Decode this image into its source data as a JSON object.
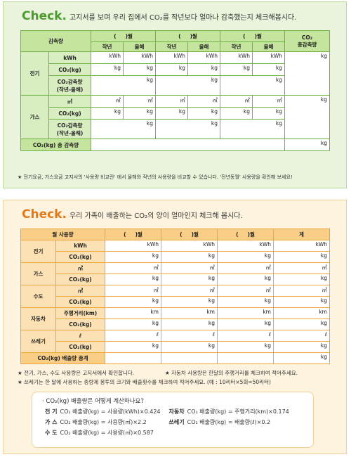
{
  "top": {
    "check": "Check.",
    "title": "고지서를 보며 우리 집에서 CO₂를 작년보다 얼마나 감축했는지 체크해봅시다.",
    "header": {
      "label": "감축량",
      "months": [
        "(     )월",
        "(     )월",
        "(     )월"
      ],
      "total": "CO₂\n총감축량",
      "sub": [
        "작년",
        "올해",
        "작년",
        "올해",
        "작년",
        "올해"
      ]
    },
    "groups": [
      {
        "name": "전기",
        "total": "kg",
        "rows": [
          {
            "label": "kWh",
            "cells": [
              "kWh",
              "kWh",
              "kWh",
              "kWh",
              "kWh",
              "kWh"
            ]
          },
          {
            "label": "CO₂(kg)",
            "cells": [
              "kg",
              "kg",
              "kg",
              "kg",
              "kg",
              "kg"
            ]
          },
          {
            "label": "CO₂감축량\n(작년-올해)",
            "cells": [
              "kg",
              "kg",
              "kg"
            ]
          }
        ]
      },
      {
        "name": "가스",
        "total": "kg",
        "rows": [
          {
            "label": "㎥",
            "cells": [
              "㎥",
              "㎥",
              "㎥",
              "㎥",
              "㎥",
              "㎥"
            ]
          },
          {
            "label": "CO₂(kg)",
            "cells": [
              "kg",
              "kg",
              "kg",
              "kg",
              "kg",
              "kg"
            ]
          },
          {
            "label": "CO₂감축량\n(작년-올해)",
            "cells": [
              "kg",
              "kg",
              "kg"
            ]
          }
        ]
      }
    ],
    "total_row": {
      "label": "CO₂(kg) 총 감축량",
      "total": "kg"
    },
    "note": "★ 전기요금, 가스요금 고지서의 '사용량 비교란' 에서 올해와 작년의 사용량을 비교할 수 있습니다. '전년동월' 사용량을 확인해 보세요!"
  },
  "bottom": {
    "check": "Check.",
    "title": "우리 가족이 배출하는 CO₂의 양이 얼마인지 체크해 봅시다.",
    "header": {
      "label": "월 사용량",
      "months": [
        "(     )월",
        "(     )월",
        "(     )월"
      ],
      "sum": "계"
    },
    "groups": [
      {
        "name": "전기",
        "rows": [
          {
            "label": "kWh",
            "cells": [
              "kWh",
              "kWh",
              "kWh",
              "kWh"
            ]
          },
          {
            "label": "CO₂(kg)",
            "cells": [
              "kg",
              "kg",
              "kg",
              "kg"
            ]
          }
        ]
      },
      {
        "name": "가스",
        "rows": [
          {
            "label": "㎥",
            "cells": [
              "㎥",
              "㎥",
              "㎥",
              "㎥"
            ]
          },
          {
            "label": "CO₂(kg)",
            "cells": [
              "kg",
              "kg",
              "kg",
              "kg"
            ]
          }
        ]
      },
      {
        "name": "수도",
        "rows": [
          {
            "label": "㎥",
            "cells": [
              "㎥",
              "㎥",
              "㎥",
              "㎥"
            ]
          },
          {
            "label": "CO₂(kg)",
            "cells": [
              "kg",
              "kg",
              "kg",
              "kg"
            ]
          }
        ]
      },
      {
        "name": "자동차",
        "rows": [
          {
            "label": "주행거리(km)",
            "cells": [
              "km",
              "km",
              "km",
              "km"
            ]
          },
          {
            "label": "CO₂(kg)",
            "cells": [
              "kg",
              "kg",
              "kg",
              "kg"
            ]
          }
        ]
      },
      {
        "name": "쓰레기",
        "rows": [
          {
            "label": "ℓ",
            "cells": [
              "ℓ",
              "ℓ",
              "ℓ",
              "ℓ"
            ]
          },
          {
            "label": "CO₂(kg)",
            "cells": [
              "kg",
              "kg",
              "kg",
              "kg"
            ]
          }
        ]
      }
    ],
    "total_row": {
      "label": "CO₂(kg) 배출량 총계",
      "cells": [
        null,
        null,
        null,
        "kg"
      ]
    },
    "notes": [
      "★ 전기, 가스, 수도 사용량은 고지서에서 확인합니다.",
      "★ 자동차 사용량은 한달의 주행거리를 체크하여 적어주세요.",
      "★ 쓰레기는 한 달에 사용하는 종량제 봉투의 크기와 배출횟수를 체크하여 적어주세요. (예 : 10리터×5회=50리터)"
    ],
    "box": {
      "title": "· CO₂(kg) 배출량은 어떻게 계산하나요?",
      "formulas": [
        {
          "name": "전 기",
          "text": "CO₂ 배출량(kg) = 사용량(kWh)×0.424"
        },
        {
          "name": "가 스",
          "text": "CO₂ 배출량(kg) = 사용량(㎥)×2.2"
        },
        {
          "name": "수 도",
          "text": "CO₂ 배출량(kg) = 사용량(㎥)×0.587"
        },
        {
          "name": "자동차",
          "text": "CO₂ 배출량(kg) = 주행거리(km)×0.174"
        },
        {
          "name": "쓰레기",
          "text": "CO₂ 배출량(kg) = 배출량(ℓ)×0.2"
        }
      ]
    }
  }
}
